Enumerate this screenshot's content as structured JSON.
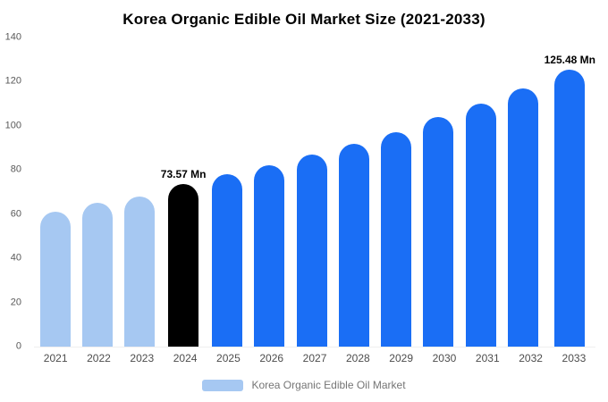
{
  "title": "Korea Organic Edible Oil Market Size (2021-2033)",
  "legend": {
    "label": "Korea Organic Edible Oil Market",
    "swatch_color": "#a6c8f2"
  },
  "colors": {
    "historical_bar": "#a6c8f2",
    "base_year_bar": "#000000",
    "forecast_bar": "#1a6ef5",
    "axis_text": "#595959",
    "annotation_text": "#000000"
  },
  "chart_data": {
    "type": "bar",
    "title": "Korea Organic Edible Oil Market Size (2021-2033)",
    "xlabel": "",
    "ylabel": "",
    "categories": [
      "2021",
      "2022",
      "2023",
      "2024",
      "2025",
      "2026",
      "2027",
      "2028",
      "2029",
      "2030",
      "2031",
      "2032",
      "2033"
    ],
    "values": [
      61,
      65,
      68,
      73.57,
      78,
      82,
      87,
      92,
      97,
      104,
      110,
      117,
      125.48
    ],
    "bar_colors": [
      "#a6c8f2",
      "#a6c8f2",
      "#a6c8f2",
      "#000000",
      "#1a6ef5",
      "#1a6ef5",
      "#1a6ef5",
      "#1a6ef5",
      "#1a6ef5",
      "#1a6ef5",
      "#1a6ef5",
      "#1a6ef5",
      "#1a6ef5"
    ],
    "annotations": [
      {
        "index": 3,
        "text": "73.57 Mn"
      },
      {
        "index": 12,
        "text": "125.48 Mn"
      }
    ],
    "ylim": [
      0,
      140
    ],
    "yticks": [
      0,
      20,
      40,
      60,
      80,
      100,
      120,
      140
    ],
    "grid": false,
    "legend_position": "bottom",
    "legend_entries": [
      "Korea Organic Edible Oil Market"
    ]
  }
}
